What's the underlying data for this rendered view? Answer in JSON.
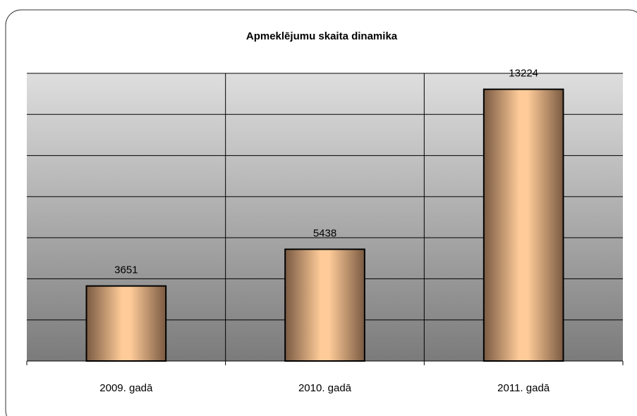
{
  "chart_data": {
    "type": "bar",
    "title": "Apmeklējumu skaita dinamika",
    "categories": [
      "2009. gadā",
      "2010. gadā",
      "2011. gadā"
    ],
    "values": [
      3651,
      5438,
      13224
    ],
    "ylim": [
      0,
      14000
    ],
    "yticks": [
      0,
      2000,
      4000,
      6000,
      8000,
      10000,
      12000,
      14000
    ],
    "grid": true,
    "color": "#ffcc99"
  }
}
